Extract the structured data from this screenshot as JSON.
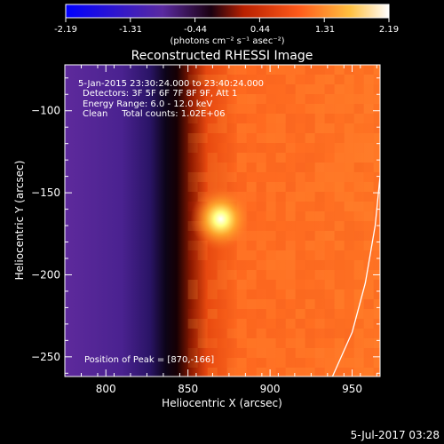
{
  "colorbar": {
    "tick_labels": [
      "-2.19",
      "-1.31",
      "-0.44",
      "0.44",
      "1.31",
      "2.19"
    ],
    "min": -2.19,
    "max": 2.19,
    "unit_label": "(photons cm⁻² s⁻¹ asec⁻²)"
  },
  "chart_data": {
    "type": "heatmap",
    "title": "Reconstructed RHESSI Image",
    "xlabel": "Heliocentric X (arcsec)",
    "ylabel": "Heliocentric Y (arcsec)",
    "xlim": [
      775,
      967
    ],
    "ylim": [
      -262,
      -72
    ],
    "x_ticks": [
      800,
      850,
      900,
      950
    ],
    "y_ticks": [
      -100,
      -150,
      -200,
      -250
    ],
    "x_tick_labels": [
      "800",
      "850",
      "900",
      "950"
    ],
    "y_tick_labels": [
      "−100",
      "−150",
      "−200",
      "−250"
    ],
    "peak": {
      "x": 870,
      "y": -166,
      "value": 2.19
    },
    "intensity_profile_x": [
      {
        "x": 775,
        "value": -1.45
      },
      {
        "x": 800,
        "value": -1.55
      },
      {
        "x": 820,
        "value": -1.75
      },
      {
        "x": 833,
        "value": -2.1
      },
      {
        "x": 840,
        "value": -0.6
      },
      {
        "x": 848,
        "value": 0.6
      },
      {
        "x": 880,
        "value": 0.8
      },
      {
        "x": 930,
        "value": 0.75
      },
      {
        "x": 967,
        "value": 0.65
      }
    ],
    "limb_curve": [
      {
        "x": 938,
        "y": -262
      },
      {
        "x": 950,
        "y": -235
      },
      {
        "x": 958,
        "y": -205
      },
      {
        "x": 964,
        "y": -170
      },
      {
        "x": 967,
        "y": -140
      }
    ],
    "annotations": [
      "5-Jan-2015 23:30:24.000 to 23:40:24.000",
      "Detectors: 3F 5F 6F 7F 8F 9F, Att 1",
      "Energy Range: 6.0 - 12.0 keV",
      "Clean     Total counts: 1.02E+06"
    ],
    "peak_label": "Position of Peak = [870,-166]"
  },
  "footer": {
    "timestamp": "5-Jul-2017 03:28"
  },
  "colors": {
    "background": "#000000",
    "text": "#ffffff",
    "colormap": [
      "#0000ff",
      "#3a1eb4",
      "#5a2aa0",
      "#000000",
      "#b82000",
      "#ff4a1a",
      "#ffb03a",
      "#ffff99",
      "#ffffff"
    ]
  }
}
